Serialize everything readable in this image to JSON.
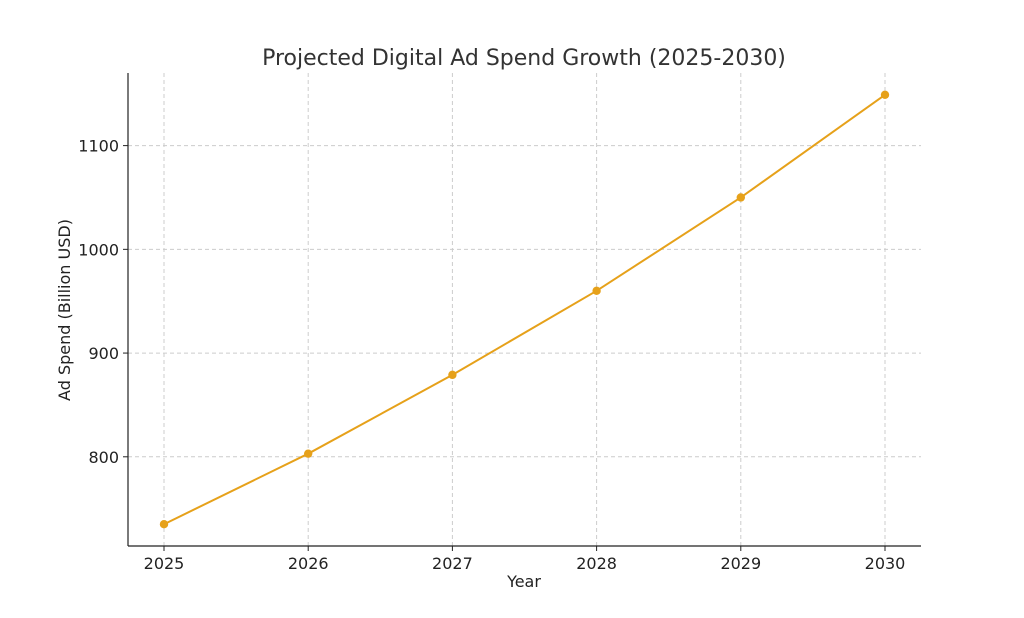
{
  "chart_data": {
    "type": "line",
    "title": "Projected Digital Ad Spend Growth (2025-2030)",
    "xlabel": "Year",
    "ylabel": "Ad Spend (Billion USD)",
    "x": [
      "2025",
      "2026",
      "2027",
      "2028",
      "2029",
      "2030"
    ],
    "series": [
      {
        "values": [
          735,
          803,
          879,
          960,
          1050,
          1149
        ],
        "color": "#e6a11a",
        "marker": "circle"
      }
    ],
    "xlim": [
      "2025",
      "2030"
    ],
    "ylim": [
      714,
      1170
    ],
    "y_ticks": [
      800,
      900,
      1000,
      1100
    ],
    "grid": true,
    "legend": "none"
  }
}
